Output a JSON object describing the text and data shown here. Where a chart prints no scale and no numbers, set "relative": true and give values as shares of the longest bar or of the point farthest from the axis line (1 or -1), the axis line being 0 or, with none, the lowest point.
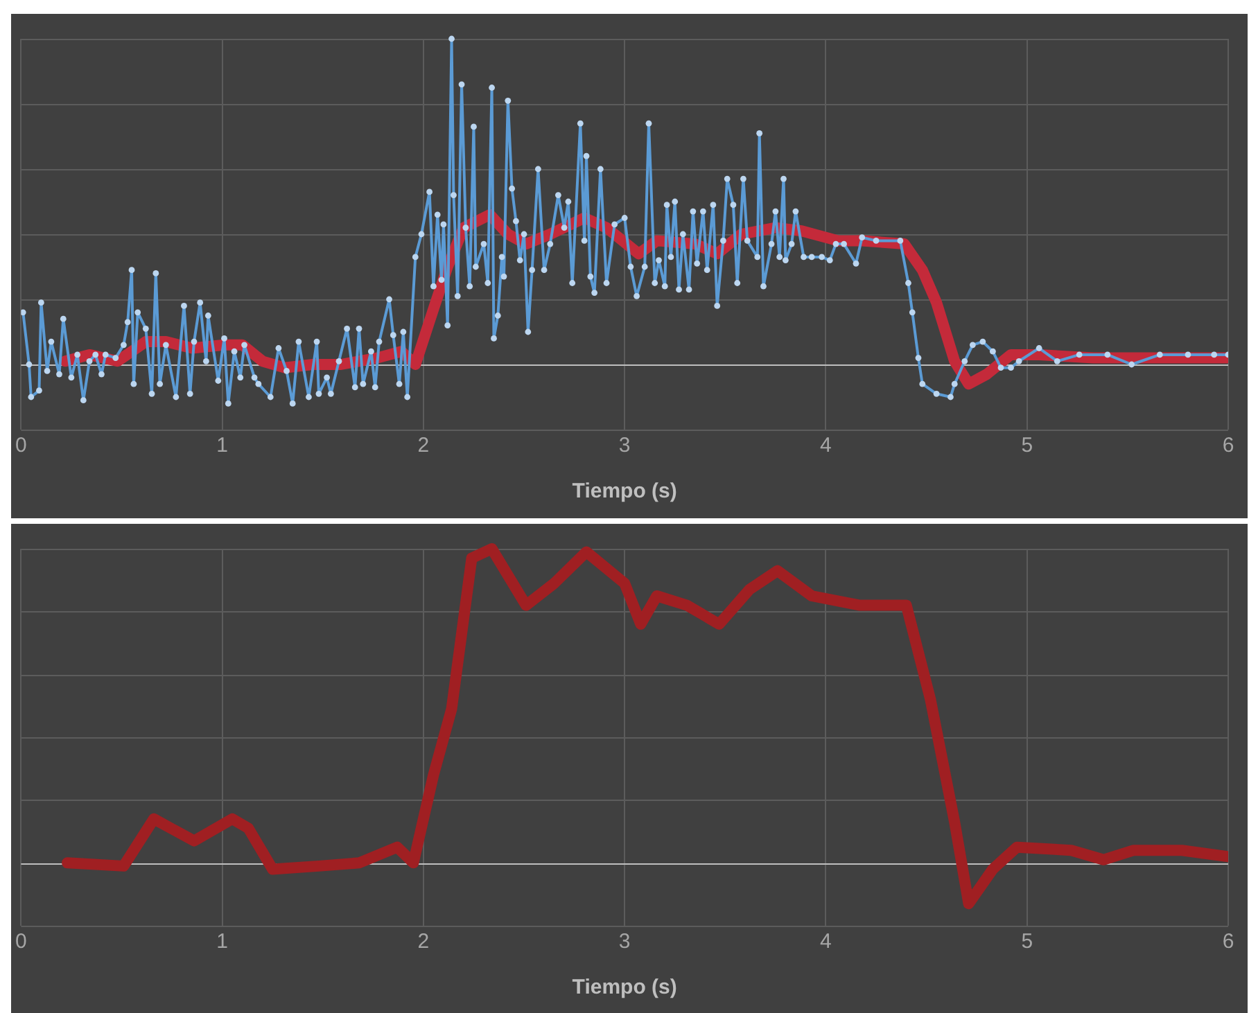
{
  "chart_data": [
    {
      "type": "line",
      "relative": true,
      "xlabel": "Tiempo (s)",
      "xlim": [
        0,
        6
      ],
      "xticks": [
        0,
        1,
        2,
        3,
        4,
        5,
        6
      ],
      "tick_labels": "x",
      "grid": true,
      "legend": false,
      "series": [
        {
          "color": "#5b9bd5",
          "marker": "circle",
          "x": [
            0.01,
            0.04,
            0.05,
            0.09,
            0.1,
            0.13,
            0.15,
            0.19,
            0.21,
            0.25,
            0.28,
            0.31,
            0.34,
            0.37,
            0.4,
            0.42,
            0.47,
            0.51,
            0.53,
            0.55,
            0.56,
            0.58,
            0.62,
            0.65,
            0.67,
            0.69,
            0.72,
            0.77,
            0.81,
            0.84,
            0.86,
            0.89,
            0.92,
            0.93,
            0.98,
            1.01,
            1.03,
            1.06,
            1.09,
            1.11,
            1.16,
            1.18,
            1.24,
            1.28,
            1.32,
            1.35,
            1.38,
            1.43,
            1.47,
            1.48,
            1.52,
            1.54,
            1.58,
            1.62,
            1.66,
            1.68,
            1.7,
            1.74,
            1.76,
            1.78,
            1.83,
            1.85,
            1.88,
            1.9,
            1.92,
            1.96,
            1.99,
            2.03,
            2.05,
            2.07,
            2.09,
            2.1,
            2.12,
            2.14,
            2.15,
            2.17,
            2.19,
            2.21,
            2.23,
            2.25,
            2.26,
            2.3,
            2.32,
            2.34,
            2.35,
            2.37,
            2.39,
            2.4,
            2.42,
            2.44,
            2.46,
            2.48,
            2.5,
            2.52,
            2.54,
            2.57,
            2.6,
            2.63,
            2.67,
            2.7,
            2.72,
            2.74,
            2.78,
            2.8,
            2.81,
            2.83,
            2.85,
            2.88,
            2.91,
            2.95,
            3.0,
            3.03,
            3.06,
            3.1,
            3.12,
            3.15,
            3.17,
            3.2,
            3.21,
            3.23,
            3.25,
            3.27,
            3.29,
            3.32,
            3.34,
            3.36,
            3.39,
            3.41,
            3.44,
            3.46,
            3.49,
            3.51,
            3.54,
            3.56,
            3.59,
            3.61,
            3.66,
            3.67,
            3.69,
            3.73,
            3.75,
            3.77,
            3.79,
            3.8,
            3.83,
            3.85,
            3.89,
            3.93,
            3.98,
            4.02,
            4.05,
            4.09,
            4.15,
            4.18,
            4.25,
            4.37,
            4.41,
            4.43,
            4.46,
            4.48,
            4.55,
            4.62,
            4.64,
            4.69,
            4.73,
            4.78,
            4.83,
            4.87,
            4.92,
            4.96,
            5.06,
            5.15,
            5.26,
            5.4,
            5.52,
            5.66,
            5.8,
            5.93,
            6.0
          ],
          "values": [
            0.16,
            0.0,
            -0.1,
            -0.08,
            0.19,
            -0.02,
            0.07,
            -0.03,
            0.14,
            -0.04,
            0.03,
            -0.11,
            0.01,
            0.03,
            -0.03,
            0.03,
            0.02,
            0.06,
            0.13,
            0.29,
            -0.06,
            0.16,
            0.11,
            -0.09,
            0.28,
            -0.06,
            0.06,
            -0.1,
            0.18,
            -0.09,
            0.07,
            0.19,
            0.01,
            0.15,
            -0.05,
            0.08,
            -0.12,
            0.04,
            -0.04,
            0.06,
            -0.04,
            -0.06,
            -0.1,
            0.05,
            -0.02,
            -0.12,
            0.07,
            -0.1,
            0.07,
            -0.09,
            -0.04,
            -0.09,
            0.01,
            0.11,
            -0.07,
            0.11,
            -0.06,
            0.04,
            -0.07,
            0.07,
            0.2,
            0.09,
            -0.06,
            0.1,
            -0.1,
            0.33,
            0.4,
            0.53,
            0.24,
            0.46,
            0.26,
            0.43,
            0.12,
            1.0,
            0.52,
            0.21,
            0.86,
            0.42,
            0.24,
            0.73,
            0.3,
            0.37,
            0.25,
            0.85,
            0.08,
            0.15,
            0.33,
            0.27,
            0.81,
            0.54,
            0.44,
            0.32,
            0.4,
            0.1,
            0.29,
            0.6,
            0.29,
            0.37,
            0.52,
            0.42,
            0.5,
            0.25,
            0.74,
            0.38,
            0.64,
            0.27,
            0.22,
            0.6,
            0.25,
            0.43,
            0.45,
            0.3,
            0.21,
            0.3,
            0.74,
            0.25,
            0.32,
            0.24,
            0.49,
            0.33,
            0.5,
            0.23,
            0.4,
            0.23,
            0.47,
            0.31,
            0.47,
            0.29,
            0.49,
            0.18,
            0.38,
            0.57,
            0.49,
            0.25,
            0.57,
            0.38,
            0.33,
            0.71,
            0.24,
            0.37,
            0.47,
            0.33,
            0.57,
            0.32,
            0.37,
            0.47,
            0.33,
            0.33,
            0.33,
            0.32,
            0.37,
            0.37,
            0.31,
            0.39,
            0.38,
            0.38,
            0.25,
            0.16,
            0.02,
            -0.06,
            -0.09,
            -0.1,
            -0.06,
            0.01,
            0.06,
            0.07,
            0.04,
            -0.01,
            -0.01,
            0.01,
            0.05,
            0.01,
            0.03,
            0.03,
            0.0,
            0.03,
            0.03,
            0.03,
            0.03
          ]
        },
        {
          "color": "#c42a3a",
          "marker": "none",
          "x": [
            0.22,
            0.34,
            0.48,
            0.55,
            0.62,
            0.72,
            0.85,
            1.01,
            1.1,
            1.2,
            1.31,
            1.45,
            1.59,
            1.77,
            1.89,
            1.96,
            2.05,
            2.12,
            2.2,
            2.33,
            2.42,
            2.51,
            2.63,
            2.8,
            2.91,
            3.07,
            3.16,
            3.35,
            3.46,
            3.58,
            3.75,
            3.88,
            4.06,
            4.18,
            4.39,
            4.48,
            4.55,
            4.64,
            4.71,
            4.8,
            4.92,
            5.06,
            5.33,
            5.68,
            5.99
          ],
          "values": [
            0.01,
            0.03,
            0.01,
            0.04,
            0.07,
            0.07,
            0.05,
            0.06,
            0.06,
            0.01,
            -0.01,
            0.0,
            0.0,
            0.02,
            0.04,
            0.0,
            0.17,
            0.3,
            0.42,
            0.46,
            0.4,
            0.37,
            0.4,
            0.45,
            0.42,
            0.34,
            0.38,
            0.37,
            0.34,
            0.4,
            0.42,
            0.41,
            0.38,
            0.38,
            0.37,
            0.29,
            0.19,
            0.01,
            -0.06,
            -0.03,
            0.03,
            0.03,
            0.02,
            0.02,
            0.02
          ]
        }
      ]
    },
    {
      "type": "line",
      "relative": true,
      "xlabel": "Tiempo (s)",
      "xlim": [
        0,
        6
      ],
      "xticks": [
        0,
        1,
        2,
        3,
        4,
        5,
        6
      ],
      "tick_labels": "x",
      "grid": true,
      "legend": false,
      "series": [
        {
          "color": "#a01f22",
          "marker": "none",
          "x": [
            0.23,
            0.51,
            0.66,
            0.86,
            1.05,
            1.13,
            1.25,
            1.48,
            1.68,
            1.87,
            1.95,
            2.05,
            2.14,
            2.24,
            2.34,
            2.51,
            2.65,
            2.81,
            3.0,
            3.08,
            3.16,
            3.31,
            3.47,
            3.62,
            3.76,
            3.93,
            4.17,
            4.4,
            4.52,
            4.64,
            4.71,
            4.83,
            4.95,
            5.22,
            5.38,
            5.53,
            5.77,
            6.0
          ],
          "values": [
            0.0,
            -0.01,
            0.14,
            0.07,
            0.14,
            0.11,
            -0.02,
            -0.01,
            0.0,
            0.05,
            0.0,
            0.28,
            0.49,
            0.97,
            1.0,
            0.82,
            0.89,
            0.99,
            0.89,
            0.76,
            0.85,
            0.82,
            0.76,
            0.87,
            0.93,
            0.85,
            0.82,
            0.82,
            0.52,
            0.13,
            -0.13,
            -0.02,
            0.05,
            0.04,
            0.01,
            0.04,
            0.04,
            0.02
          ]
        }
      ]
    }
  ]
}
